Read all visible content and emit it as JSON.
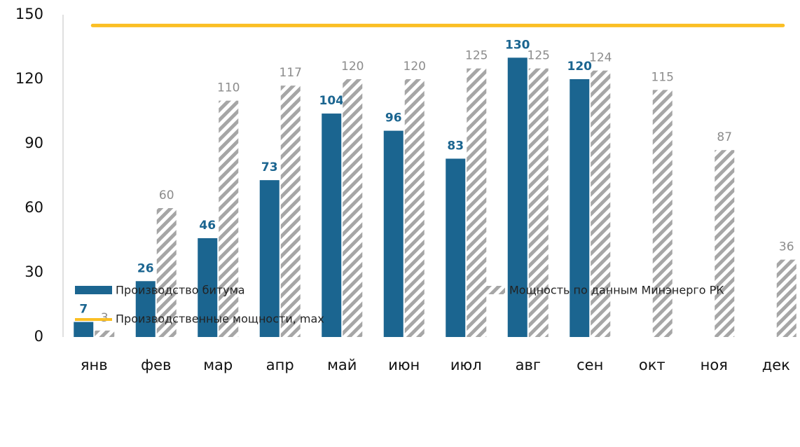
{
  "chart_data": {
    "type": "bar",
    "categories": [
      "янв",
      "фев",
      "мар",
      "апр",
      "май",
      "июн",
      "июл",
      "авг",
      "сен",
      "окт",
      "ноя",
      "дек"
    ],
    "series": [
      {
        "name": "Производство  битума",
        "color": "#1b6590",
        "values": [
          7,
          26,
          46,
          73,
          104,
          96,
          83,
          130,
          120,
          null,
          null,
          null
        ]
      },
      {
        "name": "Мощность по данным  Минэнерго  РК",
        "color": "#a6a6a6",
        "values": [
          3,
          60,
          110,
          117,
          120,
          120,
          125,
          125,
          124,
          115,
          87,
          36
        ]
      }
    ],
    "reference_line": {
      "name": "Производственные  мощности, max",
      "color": "#fbbf24",
      "value": 145
    },
    "ylim": [
      0,
      150
    ],
    "yticks": [
      0,
      30,
      60,
      90,
      120,
      150
    ]
  }
}
